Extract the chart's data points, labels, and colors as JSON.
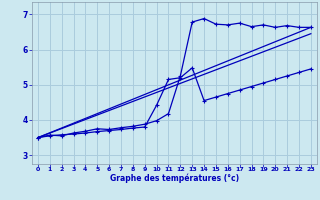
{
  "xlabel": "Graphe des températures (°c)",
  "bg_color": "#cce8f0",
  "grid_color": "#aaccdd",
  "line_color": "#0000bb",
  "xlim": [
    -0.5,
    23.5
  ],
  "ylim": [
    2.75,
    7.35
  ],
  "xticks": [
    0,
    1,
    2,
    3,
    4,
    5,
    6,
    7,
    8,
    9,
    10,
    11,
    12,
    13,
    14,
    15,
    16,
    17,
    18,
    19,
    20,
    21,
    22,
    23
  ],
  "yticks": [
    3,
    4,
    5,
    6,
    7
  ],
  "curve1_x": [
    0,
    1,
    2,
    3,
    4,
    5,
    6,
    7,
    8,
    9,
    10,
    11,
    12,
    13,
    14,
    15,
    16,
    17,
    18,
    19,
    20,
    21,
    22,
    23
  ],
  "curve1_y": [
    3.5,
    3.57,
    3.55,
    3.63,
    3.68,
    3.75,
    3.73,
    3.78,
    3.82,
    3.88,
    3.98,
    4.18,
    5.25,
    6.78,
    6.88,
    6.72,
    6.7,
    6.75,
    6.65,
    6.7,
    6.63,
    6.68,
    6.63,
    6.63
  ],
  "curve2_x": [
    0,
    1,
    2,
    3,
    4,
    5,
    6,
    7,
    8,
    9,
    10,
    11,
    12,
    13,
    14,
    15,
    16,
    17,
    18,
    19,
    20,
    21,
    22,
    23
  ],
  "curve2_y": [
    3.5,
    3.55,
    3.58,
    3.6,
    3.63,
    3.67,
    3.7,
    3.73,
    3.77,
    3.8,
    4.42,
    5.15,
    5.2,
    5.48,
    4.55,
    4.65,
    4.75,
    4.85,
    4.95,
    5.05,
    5.15,
    5.25,
    5.35,
    5.45
  ],
  "line1_x": [
    0,
    23
  ],
  "line1_y": [
    3.5,
    6.63
  ],
  "line2_x": [
    0,
    23
  ],
  "line2_y": [
    3.5,
    6.45
  ]
}
